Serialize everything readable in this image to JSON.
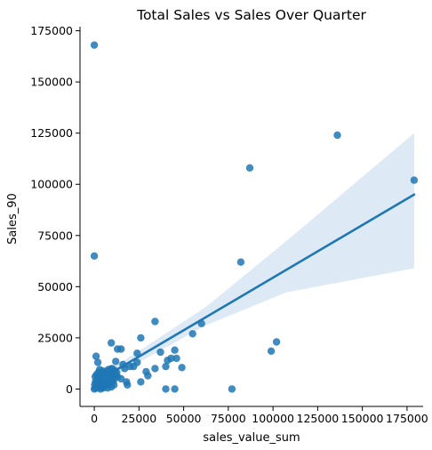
{
  "chart_data": {
    "type": "scatter",
    "title": "Total Sales vs Sales Over Quarter",
    "xlabel": "sales_value_sum",
    "ylabel": "Sales_90",
    "xlim": [
      -8000,
      184000
    ],
    "ylim": [
      -8500,
      177000
    ],
    "x_ticks": [
      0,
      25000,
      50000,
      75000,
      100000,
      125000,
      150000,
      175000
    ],
    "y_ticks": [
      0,
      25000,
      50000,
      75000,
      100000,
      125000,
      150000,
      175000
    ],
    "grid": false,
    "colors": {
      "points": "#1f77b4",
      "regression_line": "#1f77b4",
      "confidence_band": "#c6dbef"
    },
    "series": [
      {
        "points": [
          [
            0,
            168000
          ],
          [
            0,
            65000
          ],
          [
            136000,
            124000
          ],
          [
            87000,
            108000
          ],
          [
            179000,
            102000
          ],
          [
            82000,
            62000
          ],
          [
            60000,
            32000
          ],
          [
            34000,
            33000
          ],
          [
            55000,
            27000
          ],
          [
            26000,
            25000
          ],
          [
            102000,
            23000
          ],
          [
            9500,
            22500
          ],
          [
            99000,
            18500
          ],
          [
            45000,
            19000
          ],
          [
            37000,
            18000
          ],
          [
            24000,
            17500
          ],
          [
            13000,
            19500
          ],
          [
            15000,
            19500
          ],
          [
            43000,
            15000
          ],
          [
            46000,
            15000
          ],
          [
            1000,
            16000
          ],
          [
            41000,
            14000
          ],
          [
            12000,
            13500
          ],
          [
            2000,
            13000
          ],
          [
            24000,
            13000
          ],
          [
            16000,
            12000
          ],
          [
            20000,
            11000
          ],
          [
            22000,
            11000
          ],
          [
            49000,
            10500
          ],
          [
            40000,
            11000
          ],
          [
            10000,
            10000
          ],
          [
            17000,
            10000
          ],
          [
            34000,
            10000
          ],
          [
            3000,
            9500
          ],
          [
            29000,
            8500
          ],
          [
            30000,
            6500
          ],
          [
            15000,
            5000
          ],
          [
            13000,
            6000
          ],
          [
            18000,
            3500
          ],
          [
            26000,
            3500
          ],
          [
            18500,
            2000
          ],
          [
            40000,
            0
          ],
          [
            45000,
            0
          ],
          [
            77000,
            0
          ],
          [
            0,
            0
          ],
          [
            500,
            500
          ],
          [
            1000,
            1500
          ],
          [
            1500,
            3000
          ],
          [
            2000,
            4500
          ],
          [
            2500,
            1000
          ],
          [
            3000,
            2500
          ],
          [
            3500,
            0
          ],
          [
            4000,
            3500
          ],
          [
            4500,
            2000
          ],
          [
            5000,
            500
          ],
          [
            5500,
            4000
          ],
          [
            6000,
            1500
          ],
          [
            6500,
            3000
          ],
          [
            7000,
            6000
          ],
          [
            7500,
            500
          ],
          [
            8000,
            2500
          ],
          [
            8500,
            4500
          ],
          [
            9000,
            7500
          ],
          [
            9500,
            1000
          ],
          [
            10000,
            3500
          ],
          [
            10500,
            5500
          ],
          [
            11000,
            2000
          ],
          [
            11500,
            9000
          ],
          [
            12000,
            6500
          ],
          [
            500,
            6000
          ],
          [
            1200,
            7000
          ],
          [
            2200,
            8000
          ],
          [
            3200,
            5000
          ],
          [
            4200,
            6500
          ],
          [
            6800,
            8500
          ],
          [
            7800,
            9500
          ],
          [
            8800,
            5000
          ],
          [
            9800,
            7000
          ],
          [
            11000,
            4500
          ],
          [
            12500,
            8000
          ],
          [
            5200,
            7500
          ],
          [
            3800,
            1000
          ],
          [
            6300,
            2000
          ],
          [
            8300,
            3000
          ],
          [
            1800,
            500
          ],
          [
            200,
            2200
          ],
          [
            700,
            3800
          ],
          [
            2700,
            5800
          ],
          [
            4800,
            8800
          ],
          [
            9300,
            9800
          ]
        ]
      }
    ],
    "regression": {
      "x_range": [
        0,
        179000
      ],
      "y_at_x_start": 3000,
      "y_at_x_end": 95000,
      "ci_lower_at_x_start": 1000,
      "ci_upper_at_x_start": 5000,
      "ci_lower_at_x_end": 59000,
      "ci_upper_at_x_end": 125000
    }
  }
}
